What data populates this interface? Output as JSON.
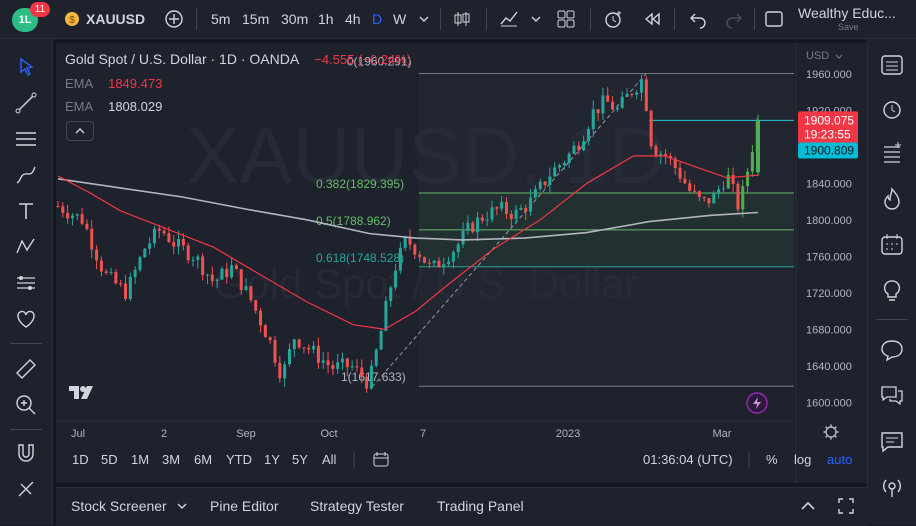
{
  "toolbar": {
    "badge_count": "11",
    "symbol": "XAUUSD",
    "intervals": [
      "5m",
      "15m",
      "30m",
      "1h",
      "4h",
      "D",
      "W"
    ],
    "active_interval": "D",
    "account_name": "Wealthy Educ...",
    "save_label": "Save"
  },
  "legend": {
    "title": "Gold Spot / U.S. Dollar · 1D · OANDA",
    "change": "−4.555 (−0.24%)",
    "ema1_label": "EMA",
    "ema1_value": "1849.473",
    "ema2_label": "EMA",
    "ema2_value": "1808.029"
  },
  "watermark": {
    "symbol": "XAUUSD, 1D",
    "desc": "Gold Spot / U.S. Dollar"
  },
  "price_labels": {
    "last": "1909.075",
    "countdown": "19:23:55",
    "ema": "1900.809",
    "currency": "USD"
  },
  "timeframes": [
    "1D",
    "5D",
    "1M",
    "3M",
    "6M",
    "YTD",
    "1Y",
    "5Y",
    "All"
  ],
  "footer": {
    "time": "01:36:04 (UTC)",
    "pct": "%",
    "log": "log",
    "auto": "auto"
  },
  "bottom_tabs": {
    "stock_screener": "Stock Screener",
    "pine_editor": "Pine Editor",
    "strategy_tester": "Strategy Tester",
    "trading_panel": "Trading Panel"
  },
  "colors": {
    "bull": "#26a69a",
    "bull_bright": "#4caf50",
    "bear": "#ef5350",
    "ema_fast": "#f23645",
    "ema_slow": "#b2b5be",
    "fib": "#66bb6a",
    "accent": "#2962ff"
  },
  "chart_data": {
    "type": "candlestick",
    "y_ticks": [
      1600,
      1640,
      1680,
      1720,
      1760,
      1800,
      1840,
      1880,
      1920,
      1960
    ],
    "x_ticks": [
      "Jul",
      "2",
      "Sep",
      "Oct",
      "7",
      "2023",
      "Mar"
    ],
    "ylim": [
      1585,
      1985
    ],
    "fib_levels": [
      {
        "label": "0(1960.291)",
        "value": 1960.291
      },
      {
        "label": "0.382(1829.395)",
        "value": 1829.395
      },
      {
        "label": "0.5(1788.962)",
        "value": 1788.962
      },
      {
        "label": "0.618(1748.528)",
        "value": 1748.528
      },
      {
        "label": "1(1617.633)",
        "value": 1617.633
      }
    ],
    "price_path": [
      {
        "d": 0,
        "p": 1815
      },
      {
        "d": 8,
        "p": 1800
      },
      {
        "d": 15,
        "p": 1740
      },
      {
        "d": 22,
        "p": 1720
      },
      {
        "d": 28,
        "p": 1770
      },
      {
        "d": 33,
        "p": 1790
      },
      {
        "d": 38,
        "p": 1772
      },
      {
        "d": 44,
        "p": 1760
      },
      {
        "d": 50,
        "p": 1732
      },
      {
        "d": 56,
        "p": 1748
      },
      {
        "d": 62,
        "p": 1712
      },
      {
        "d": 68,
        "p": 1668
      },
      {
        "d": 72,
        "p": 1628
      },
      {
        "d": 76,
        "p": 1672
      },
      {
        "d": 82,
        "p": 1655
      },
      {
        "d": 88,
        "p": 1638
      },
      {
        "d": 94,
        "p": 1640
      },
      {
        "d": 98,
        "p": 1628
      },
      {
        "d": 100,
        "p": 1620
      },
      {
        "d": 104,
        "p": 1680
      },
      {
        "d": 108,
        "p": 1745
      },
      {
        "d": 112,
        "p": 1778
      },
      {
        "d": 116,
        "p": 1765
      },
      {
        "d": 120,
        "p": 1745
      },
      {
        "d": 124,
        "p": 1758
      },
      {
        "d": 128,
        "p": 1770
      },
      {
        "d": 132,
        "p": 1790
      },
      {
        "d": 137,
        "p": 1805
      },
      {
        "d": 142,
        "p": 1812
      },
      {
        "d": 147,
        "p": 1806
      },
      {
        "d": 152,
        "p": 1820
      },
      {
        "d": 158,
        "p": 1850
      },
      {
        "d": 164,
        "p": 1870
      },
      {
        "d": 168,
        "p": 1888
      },
      {
        "d": 172,
        "p": 1918
      },
      {
        "d": 176,
        "p": 1930
      },
      {
        "d": 180,
        "p": 1920
      },
      {
        "d": 184,
        "p": 1940
      },
      {
        "d": 188,
        "p": 1955
      },
      {
        "d": 191,
        "p": 1878
      },
      {
        "d": 195,
        "p": 1872
      },
      {
        "d": 199,
        "p": 1855
      },
      {
        "d": 203,
        "p": 1832
      },
      {
        "d": 207,
        "p": 1818
      },
      {
        "d": 211,
        "p": 1825
      },
      {
        "d": 215,
        "p": 1850
      },
      {
        "d": 219,
        "p": 1812
      },
      {
        "d": 222,
        "p": 1860
      },
      {
        "d": 225,
        "p": 1910
      }
    ],
    "ema_fast_path": [
      {
        "d": 0,
        "p": 1848
      },
      {
        "d": 10,
        "p": 1830
      },
      {
        "d": 20,
        "p": 1810
      },
      {
        "d": 35,
        "p": 1790
      },
      {
        "d": 50,
        "p": 1770
      },
      {
        "d": 65,
        "p": 1740
      },
      {
        "d": 80,
        "p": 1710
      },
      {
        "d": 95,
        "p": 1685
      },
      {
        "d": 105,
        "p": 1680
      },
      {
        "d": 115,
        "p": 1700
      },
      {
        "d": 125,
        "p": 1728
      },
      {
        "d": 140,
        "p": 1768
      },
      {
        "d": 155,
        "p": 1800
      },
      {
        "d": 170,
        "p": 1840
      },
      {
        "d": 185,
        "p": 1870
      },
      {
        "d": 195,
        "p": 1870
      },
      {
        "d": 205,
        "p": 1858
      },
      {
        "d": 215,
        "p": 1846
      },
      {
        "d": 225,
        "p": 1849
      }
    ],
    "ema_slow_path": [
      {
        "d": 0,
        "p": 1845
      },
      {
        "d": 20,
        "p": 1835
      },
      {
        "d": 40,
        "p": 1825
      },
      {
        "d": 60,
        "p": 1812
      },
      {
        "d": 80,
        "p": 1800
      },
      {
        "d": 100,
        "p": 1785
      },
      {
        "d": 115,
        "p": 1780
      },
      {
        "d": 130,
        "p": 1778
      },
      {
        "d": 150,
        "p": 1780
      },
      {
        "d": 170,
        "p": 1786
      },
      {
        "d": 190,
        "p": 1798
      },
      {
        "d": 210,
        "p": 1805
      },
      {
        "d": 225,
        "p": 1808
      }
    ]
  }
}
